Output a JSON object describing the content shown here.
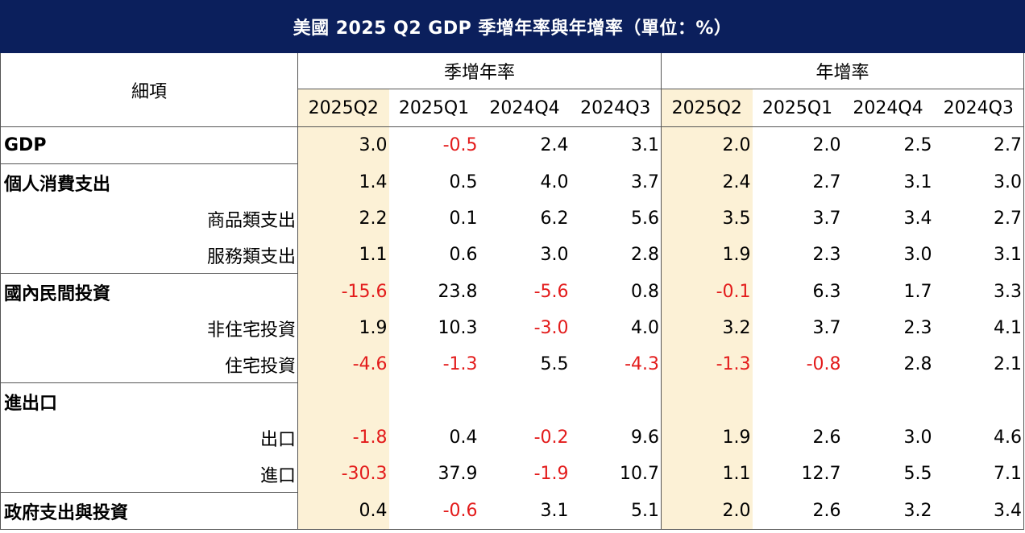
{
  "title": "美國 2025 Q2 GDP 季增年率與年增率（單位：%）",
  "header": {
    "item_label": "細項",
    "group_qoq": "季增年率",
    "group_yoy": "年增率",
    "periods": [
      "2025Q2",
      "2025Q1",
      "2024Q4",
      "2024Q3"
    ]
  },
  "rows": [
    {
      "label": "GDP",
      "level": "main",
      "qoq": [
        "3.0",
        "-0.5",
        "2.4",
        "3.1"
      ],
      "yoy": [
        "2.0",
        "2.0",
        "2.5",
        "2.7"
      ]
    },
    {
      "label": "個人消費支出",
      "level": "main",
      "qoq": [
        "1.4",
        "0.5",
        "4.0",
        "3.7"
      ],
      "yoy": [
        "2.4",
        "2.7",
        "3.1",
        "3.0"
      ]
    },
    {
      "label": "商品類支出",
      "level": "sub",
      "qoq": [
        "2.2",
        "0.1",
        "6.2",
        "5.6"
      ],
      "yoy": [
        "3.5",
        "3.7",
        "3.4",
        "2.7"
      ]
    },
    {
      "label": "服務類支出",
      "level": "sub",
      "qoq": [
        "1.1",
        "0.6",
        "3.0",
        "2.8"
      ],
      "yoy": [
        "1.9",
        "2.3",
        "3.0",
        "3.1"
      ]
    },
    {
      "label": "國內民間投資",
      "level": "main",
      "qoq": [
        "-15.6",
        "23.8",
        "-5.6",
        "0.8"
      ],
      "yoy": [
        "-0.1",
        "6.3",
        "1.7",
        "3.3"
      ]
    },
    {
      "label": "非住宅投資",
      "level": "sub",
      "qoq": [
        "1.9",
        "10.3",
        "-3.0",
        "4.0"
      ],
      "yoy": [
        "3.2",
        "3.7",
        "2.3",
        "4.1"
      ]
    },
    {
      "label": "住宅投資",
      "level": "sub",
      "qoq": [
        "-4.6",
        "-1.3",
        "5.5",
        "-4.3"
      ],
      "yoy": [
        "-1.3",
        "-0.8",
        "2.8",
        "2.1"
      ]
    },
    {
      "label": "進出口",
      "level": "main",
      "qoq": [
        "",
        "",
        "",
        ""
      ],
      "yoy": [
        "",
        "",
        "",
        ""
      ]
    },
    {
      "label": "出口",
      "level": "sub",
      "qoq": [
        "-1.8",
        "0.4",
        "-0.2",
        "9.6"
      ],
      "yoy": [
        "1.9",
        "2.6",
        "3.0",
        "4.6"
      ]
    },
    {
      "label": "進口",
      "level": "sub",
      "qoq": [
        "-30.3",
        "37.9",
        "-1.9",
        "10.7"
      ],
      "yoy": [
        "1.1",
        "12.7",
        "5.5",
        "7.1"
      ]
    },
    {
      "label": "政府支出與投資",
      "level": "main",
      "qoq": [
        "0.4",
        "-0.6",
        "3.1",
        "5.1"
      ],
      "yoy": [
        "2.0",
        "2.6",
        "3.2",
        "3.4"
      ]
    }
  ],
  "colors": {
    "title_bg": "#0b1f5c",
    "highlight_bg": "#fcf1d6",
    "negative_text": "#e31b1b"
  }
}
